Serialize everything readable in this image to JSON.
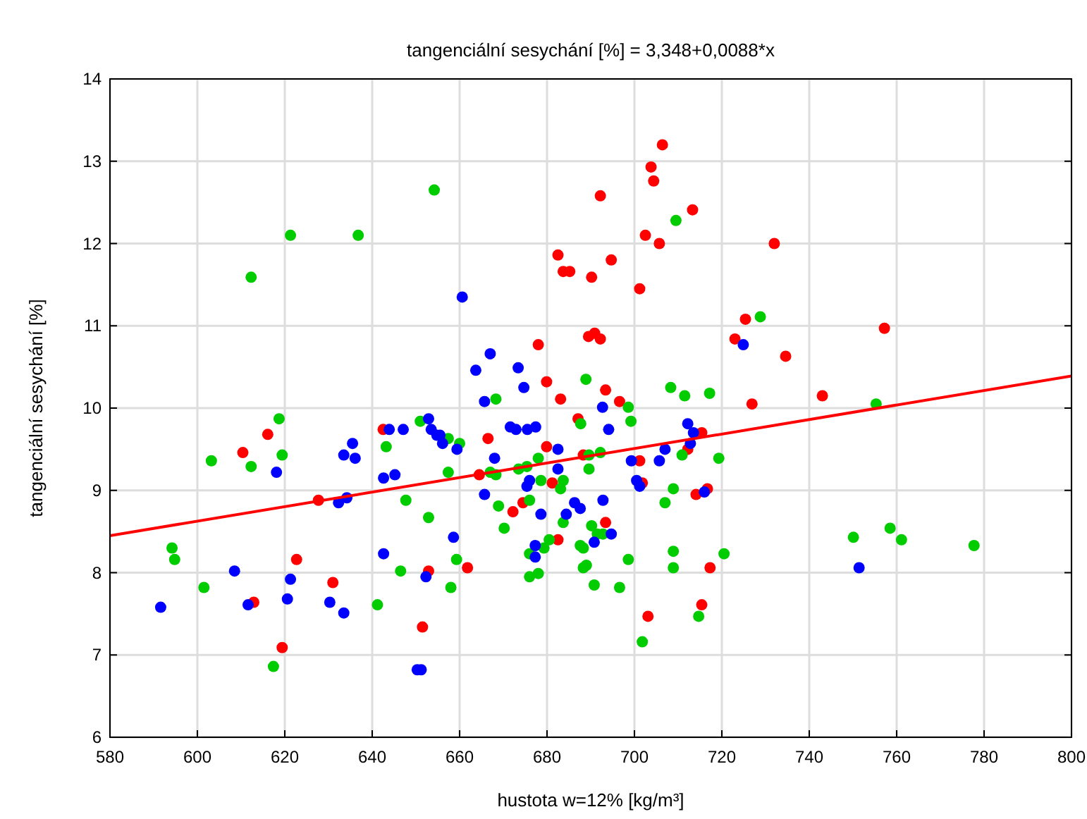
{
  "chart_data": {
    "type": "scatter",
    "title": "tangenciální sesychání [%] = 3,348+0,0088*x",
    "xlabel": "hustota w=12% [kg/m³]",
    "ylabel": "tangenciální sesychání [%]",
    "xlim": [
      580,
      800
    ],
    "xticks": [
      580,
      600,
      620,
      640,
      660,
      680,
      700,
      720,
      740,
      760,
      780,
      800
    ],
    "ylim": [
      6,
      14
    ],
    "yticks": [
      6,
      7,
      8,
      9,
      10,
      11,
      12,
      13,
      14
    ],
    "grid": true,
    "series": [
      {
        "color": "#ff0000",
        "marker": "circle",
        "x": [
          706.4,
          703.8,
          704.4,
          692.2,
          713.3,
          702.5,
          705.7,
          682.5,
          683.7,
          685.2,
          694.7,
          690.2,
          701.2,
          725.4,
          723,
          678,
          689.5,
          690.9,
          692.2,
          679.9,
          683.1,
          693.4,
          696.6,
          732,
          734.6,
          757.2,
          726.9,
          743,
          616.1,
          642.5,
          610.4,
          627.7,
          622.7,
          652.9,
          631,
          612.9,
          651.5,
          619.4,
          666.5,
          687.1,
          679.9,
          688.3,
          701.2,
          715.4,
          712.2,
          664.5,
          681.2,
          701.8,
          714.1,
          716.7,
          672.2,
          674.5,
          693.4,
          682.5,
          717.3,
          661.8,
          715.4,
          703.1
        ],
        "values": [
          13.2,
          12.93,
          12.76,
          12.58,
          12.41,
          12.1,
          12.0,
          11.86,
          11.66,
          11.66,
          11.8,
          11.59,
          11.45,
          11.08,
          10.84,
          10.77,
          10.87,
          10.91,
          10.84,
          10.32,
          10.11,
          10.22,
          10.08,
          12.0,
          10.63,
          10.97,
          10.05,
          10.15,
          9.68,
          9.74,
          9.46,
          8.88,
          8.16,
          8.02,
          7.88,
          7.64,
          7.34,
          7.09,
          9.63,
          9.87,
          9.53,
          9.43,
          9.36,
          9.7,
          9.5,
          9.19,
          9.09,
          9.09,
          8.95,
          9.02,
          8.74,
          8.85,
          8.61,
          8.4,
          8.06,
          8.06,
          7.61,
          7.47
        ]
      },
      {
        "color": "#00cc00",
        "marker": "circle",
        "x": [
          709.5,
          654.2,
          668.3,
          688.9,
          698.6,
          708.3,
          711.5,
          717.2,
          728.8,
          755.3,
          750.1,
          758.5,
          761.1,
          777.7,
          612.3,
          621.3,
          636.8,
          618.7,
          651,
          603.2,
          612.3,
          619.4,
          643.2,
          647.7,
          652.9,
          594.2,
          594.8,
          646.5,
          601.5,
          641.2,
          617.4,
          657.4,
          660,
          687.7,
          699.2,
          678,
          689.6,
          692.2,
          710.9,
          719.3,
          667,
          668.3,
          657.4,
          673.5,
          675.4,
          689.6,
          678.6,
          683.7,
          683.1,
          708.9,
          668.9,
          676,
          683.7,
          707,
          670.2,
          690.2,
          691.5,
          692.8,
          680.5,
          679.3,
          687.6,
          688.3,
          676,
          659.3,
          698.6,
          708.9,
          720.5,
          708.9,
          688.3,
          689,
          676,
          678,
          658,
          690.8,
          696.6,
          714.7,
          701.8
        ],
        "values": [
          12.28,
          12.65,
          10.11,
          10.35,
          10.01,
          10.25,
          10.15,
          10.18,
          11.11,
          10.05,
          8.43,
          8.54,
          8.4,
          8.33,
          11.59,
          12.1,
          12.1,
          9.87,
          9.84,
          9.36,
          9.29,
          9.43,
          9.53,
          8.88,
          8.67,
          8.3,
          8.16,
          8.02,
          7.82,
          7.61,
          6.86,
          9.63,
          9.57,
          9.81,
          9.84,
          9.39,
          9.43,
          9.46,
          9.43,
          9.39,
          9.22,
          9.19,
          9.22,
          9.26,
          9.29,
          9.26,
          9.12,
          9.12,
          9.02,
          9.02,
          8.81,
          8.88,
          8.61,
          8.85,
          8.54,
          8.57,
          8.47,
          8.47,
          8.4,
          8.3,
          8.33,
          8.3,
          8.23,
          8.16,
          8.16,
          8.26,
          8.23,
          8.06,
          8.06,
          8.09,
          7.95,
          7.99,
          7.82,
          7.85,
          7.82,
          7.47,
          7.16
        ]
      },
      {
        "color": "#0000ff",
        "marker": "circle",
        "x": [
          660.6,
          724.9,
          667,
          663.7,
          673.4,
          674.7,
          665.7,
          692.7,
          751.4,
          643.9,
          647.1,
          652.9,
          653.5,
          654.8,
          618.1,
          635.5,
          633.5,
          636.1,
          642.6,
          645.2,
          632.3,
          634.2,
          642.6,
          608.5,
          652.3,
          621.3,
          611.6,
          591.6,
          620.6,
          630.3,
          633.5,
          650.3,
          651.2,
          655.5,
          656.1,
          659.4,
          671.6,
          672.9,
          675.5,
          677.4,
          694.1,
          682.5,
          668,
          699.3,
          705.7,
          707,
          712.2,
          713.5,
          712.8,
          682.5,
          676,
          675.4,
          700.5,
          701.2,
          716,
          665.7,
          678.6,
          686.3,
          687.6,
          684.4,
          692.8,
          694.7,
          658.6,
          677.3,
          690.8,
          677.3
        ],
        "values": [
          11.35,
          10.77,
          10.66,
          10.46,
          10.49,
          10.25,
          10.08,
          10.01,
          8.06,
          9.74,
          9.74,
          9.87,
          9.74,
          9.67,
          9.22,
          9.57,
          9.43,
          9.39,
          9.15,
          9.19,
          8.85,
          8.91,
          8.23,
          8.02,
          7.95,
          7.92,
          7.61,
          7.58,
          7.68,
          7.64,
          7.51,
          6.82,
          6.82,
          9.67,
          9.57,
          9.5,
          9.77,
          9.74,
          9.74,
          9.77,
          9.74,
          9.5,
          9.39,
          9.36,
          9.36,
          9.5,
          9.81,
          9.7,
          9.57,
          9.26,
          9.12,
          9.05,
          9.12,
          9.05,
          8.98,
          8.95,
          8.71,
          8.85,
          8.78,
          8.71,
          8.88,
          8.47,
          8.43,
          8.33,
          8.37,
          8.19
        ]
      },
      {
        "type": "line",
        "color": "#ff0000",
        "x": [
          580,
          800
        ],
        "values": [
          8.45,
          10.39
        ],
        "marker": "none"
      }
    ]
  }
}
